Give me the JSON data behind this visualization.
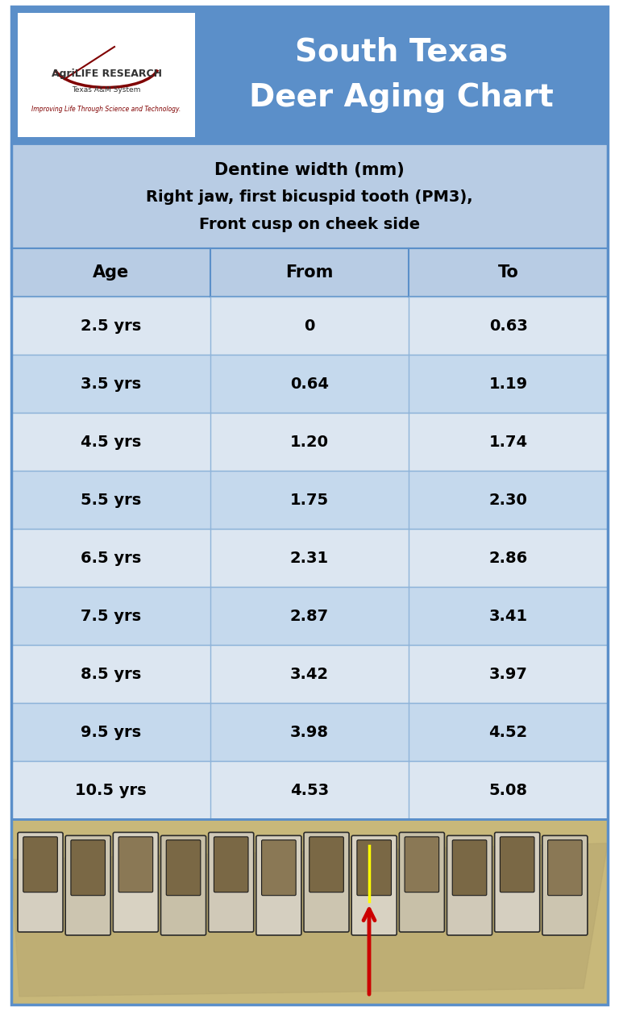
{
  "title_line1": "South Texas",
  "title_line2": "Deer Aging Chart",
  "title_bg_color": "#5b8fc9",
  "title_text_color": "#ffffff",
  "subtitle_line1": "Dentine width (mm)",
  "subtitle_line2": "Right jaw, first bicuspid tooth (PM3),",
  "subtitle_line3": "Front cusp on cheek side",
  "subtitle_bg_color": "#b8cce4",
  "col_headers": [
    "Age",
    "From",
    "To"
  ],
  "col_header_bg": "#b8cce4",
  "rows": [
    [
      "2.5 yrs",
      "0",
      "0.63"
    ],
    [
      "3.5 yrs",
      "0.64",
      "1.19"
    ],
    [
      "4.5 yrs",
      "1.20",
      "1.74"
    ],
    [
      "5.5 yrs",
      "1.75",
      "2.30"
    ],
    [
      "6.5 yrs",
      "2.31",
      "2.86"
    ],
    [
      "7.5 yrs",
      "2.87",
      "3.41"
    ],
    [
      "8.5 yrs",
      "3.42",
      "3.97"
    ],
    [
      "9.5 yrs",
      "3.98",
      "4.52"
    ],
    [
      "10.5 yrs",
      "4.53",
      "5.08"
    ]
  ],
  "row_bg_light": "#dce6f1",
  "row_bg_dark": "#c5d9ed",
  "row_line_color": "#8fb4d9",
  "table_border_color": "#5b8fc9",
  "cell_text_color": "#000000",
  "figure_bg": "#ffffff",
  "logo_text1": "AgriLIFE RESEARCH",
  "logo_text2": "Texas A&M System",
  "logo_text3": "Improving Life Through Science and Technology.",
  "arc_color": "#800000",
  "photo_bg": "#c8b87a",
  "arrow_color": "#cc0000",
  "yellow_marker": "#ffff00"
}
